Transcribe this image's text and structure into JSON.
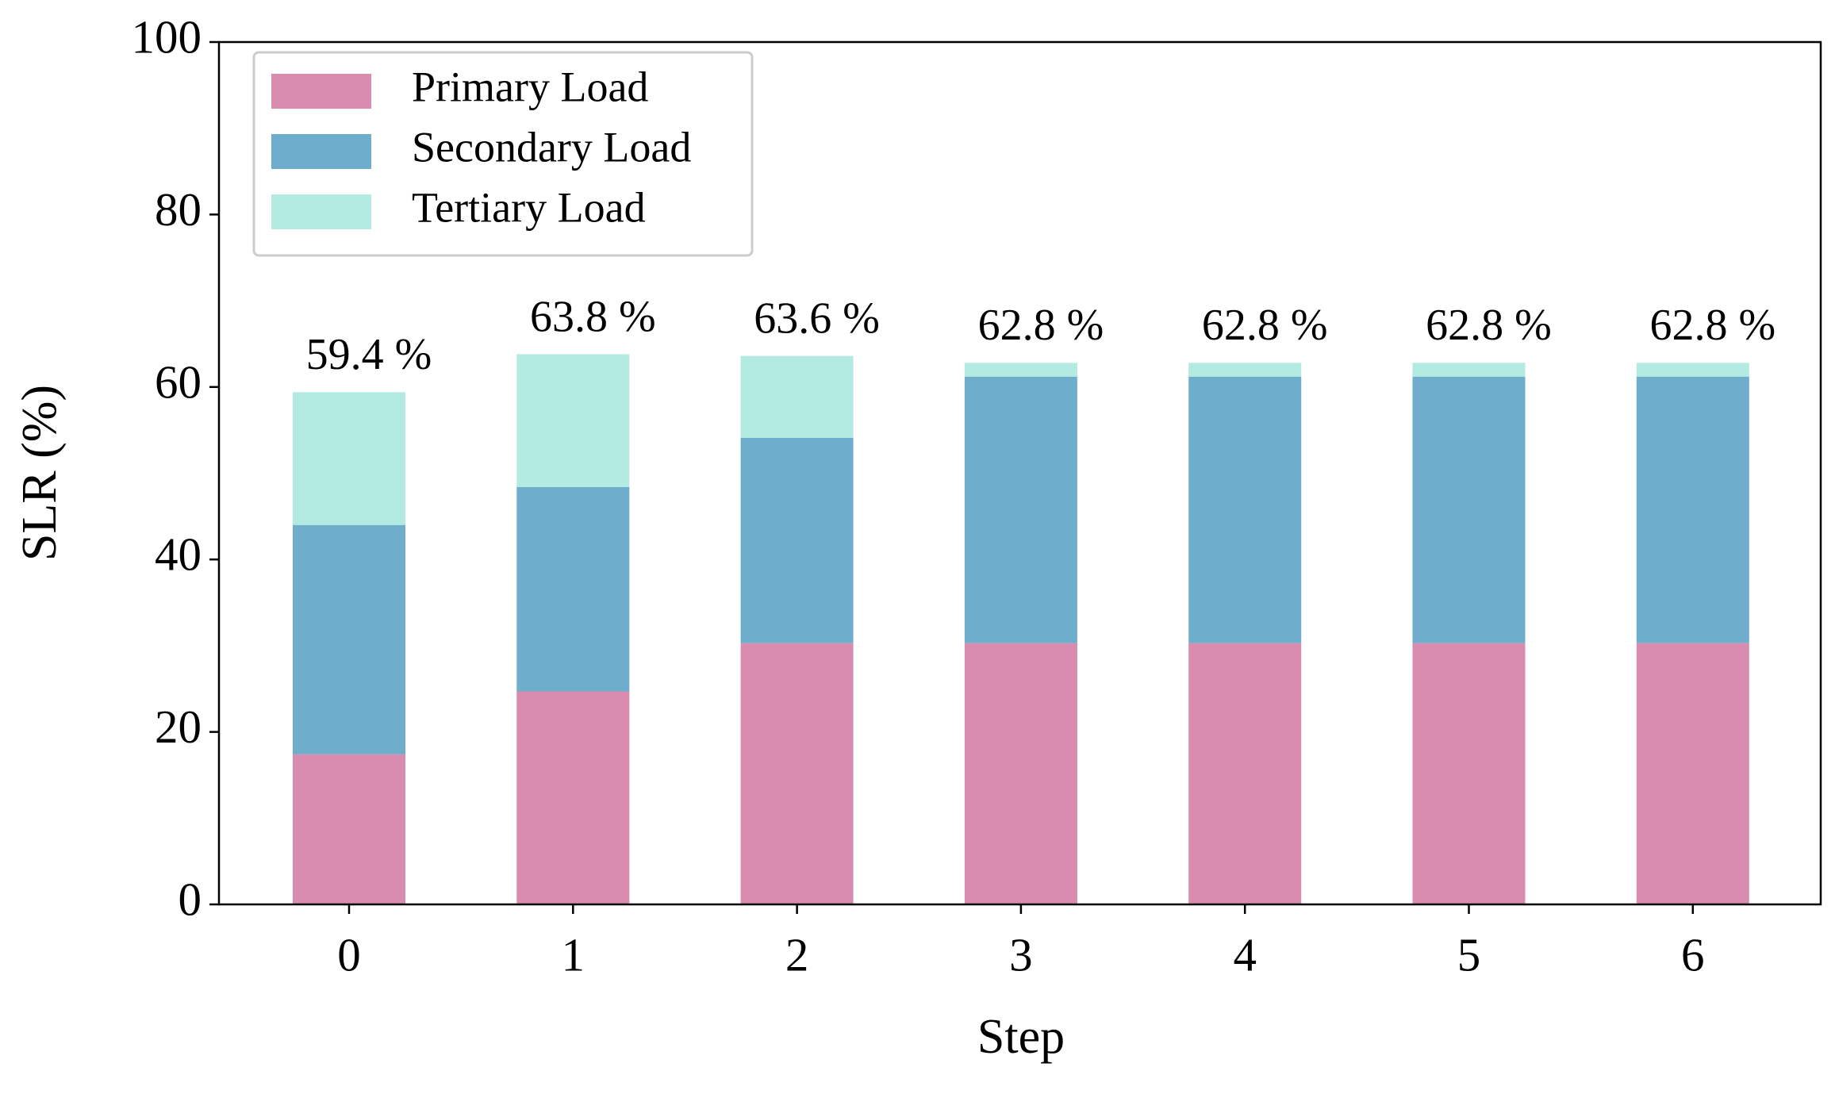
{
  "chart_data": {
    "type": "stacked_bar",
    "x_label": "Step",
    "y_label": "SLR (%)",
    "categories": [
      "0",
      "1",
      "2",
      "3",
      "4",
      "5",
      "6"
    ],
    "series": [
      {
        "name": "Primary Load",
        "color": "#d98bb0",
        "values": [
          17.4,
          24.7,
          30.3,
          30.3,
          30.3,
          30.3,
          30.3
        ]
      },
      {
        "name": "Secondary Load",
        "color": "#6fadcc",
        "values": [
          26.6,
          23.7,
          23.8,
          30.9,
          30.9,
          30.9,
          30.9
        ]
      },
      {
        "name": "Tertiary Load",
        "color": "#b3eae2",
        "values": [
          15.4,
          15.4,
          9.5,
          1.6,
          1.6,
          1.6,
          1.6
        ]
      }
    ],
    "totals": [
      59.4,
      63.8,
      63.6,
      62.8,
      62.8,
      62.8,
      62.8
    ],
    "total_labels": [
      "59.4 %",
      "63.8 %",
      "63.6 %",
      "62.8 %",
      "62.8 %",
      "62.8 %",
      "62.8 %"
    ],
    "ylim": [
      0,
      100
    ],
    "yticks": [
      0,
      20,
      40,
      60,
      80,
      100
    ],
    "legend": "upper left"
  }
}
